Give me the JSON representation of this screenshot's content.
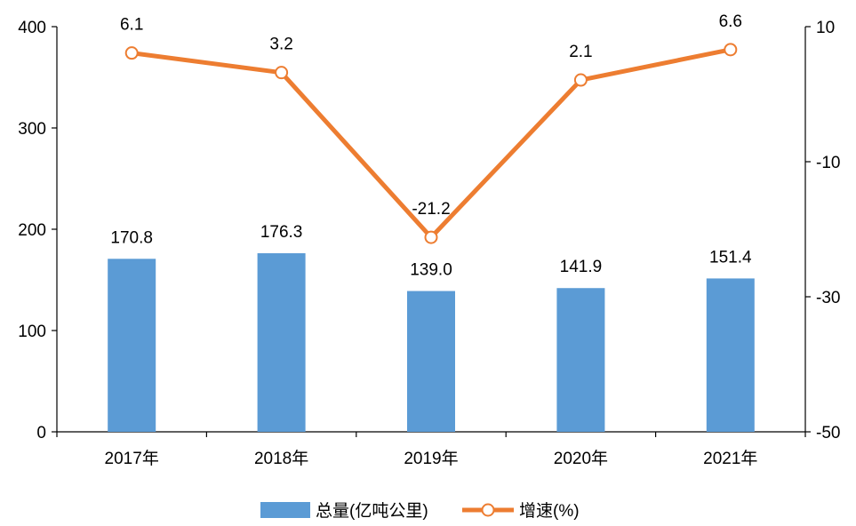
{
  "chart_data": {
    "type": "bar+line",
    "categories": [
      "2017年",
      "2018年",
      "2019年",
      "2020年",
      "2021年"
    ],
    "series": [
      {
        "name": "总量(亿吨公里)",
        "type": "bar",
        "axis": "left",
        "values": [
          170.8,
          176.3,
          139.0,
          141.9,
          151.4
        ],
        "labels": [
          "170.8",
          "176.3",
          "139.0",
          "141.9",
          "151.4"
        ],
        "color": "#5b9bd5"
      },
      {
        "name": "增速(%)",
        "type": "line",
        "axis": "right",
        "values": [
          6.1,
          3.2,
          -21.2,
          2.1,
          6.6
        ],
        "labels": [
          "6.1",
          "3.2",
          "-21.2",
          "2.1",
          "6.6"
        ],
        "color": "#ed7d31"
      }
    ],
    "y_left": {
      "ylim": [
        0,
        400
      ],
      "ticks": [
        "0",
        "100",
        "200",
        "300",
        "400"
      ]
    },
    "y_right": {
      "ylim": [
        -50,
        10
      ],
      "ticks": [
        "-50",
        "-30",
        "-10",
        "10"
      ]
    },
    "grid": false,
    "legend": "bottom-center"
  }
}
